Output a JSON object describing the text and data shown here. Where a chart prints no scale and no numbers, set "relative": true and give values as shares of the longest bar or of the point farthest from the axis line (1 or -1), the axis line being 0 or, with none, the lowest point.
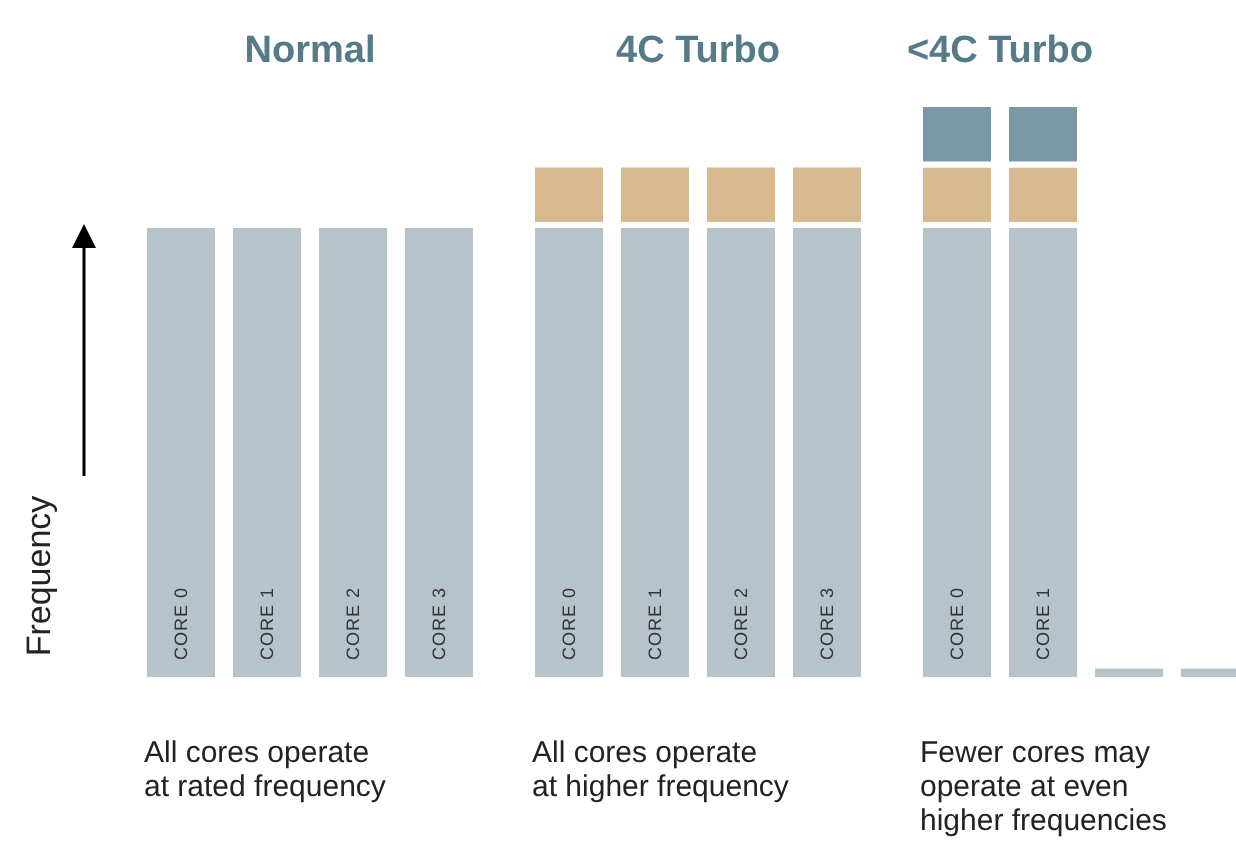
{
  "chart_data": {
    "type": "bar",
    "stacked": true,
    "relative": true,
    "ylabel": "Frequency",
    "categories": [
      "CORE 0",
      "CORE 1",
      "CORE 2",
      "CORE 3",
      "CORE 0",
      "CORE 1",
      "CORE 2",
      "CORE 3",
      "CORE 0",
      "CORE 1",
      null,
      null
    ],
    "series": [
      {
        "color": "#b7c3ca",
        "values": [
          0.79,
          0.79,
          0.79,
          0.79,
          0.79,
          0.79,
          0.79,
          0.79,
          0.79,
          0.79,
          0.025,
          0.025
        ]
      },
      {
        "color": "#d6b98f",
        "values": [
          null,
          null,
          null,
          null,
          0.105,
          0.105,
          0.105,
          0.105,
          0.105,
          0.105,
          null,
          null
        ]
      },
      {
        "color": "#7c97a5",
        "values": [
          null,
          null,
          null,
          null,
          null,
          null,
          null,
          null,
          0.105,
          0.105,
          null,
          null
        ]
      }
    ],
    "annotations": [
      "Normal",
      "4C Turbo",
      "<4C Turbo",
      "All cores operate\nat rated frequency",
      "All cores operate\nat higher frequency",
      "Fewer cores may\noperate at even\nhigher frequencies"
    ],
    "title": null
  }
}
